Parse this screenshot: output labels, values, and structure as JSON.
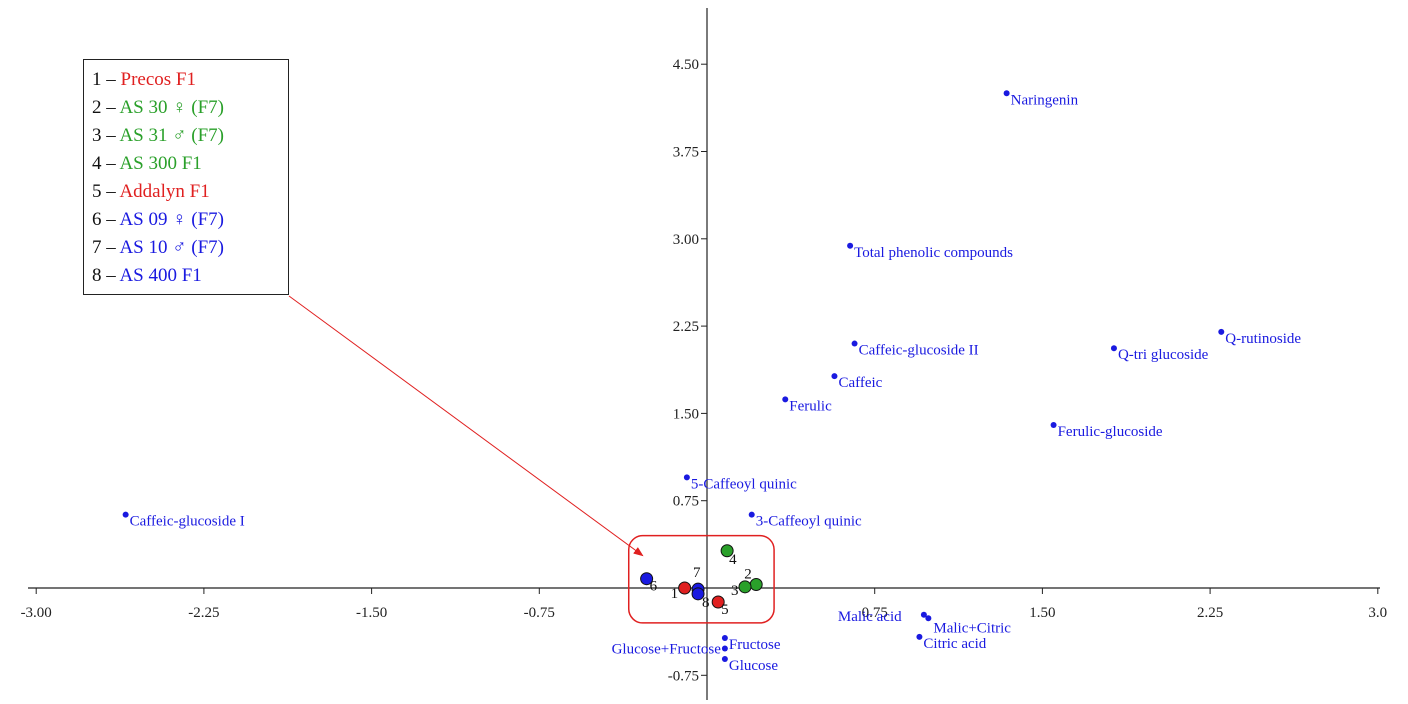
{
  "chart_data": {
    "type": "scatter",
    "title": "",
    "xlabel": "",
    "ylabel": "",
    "xlim": [
      -3.0,
      3.0
    ],
    "ylim": [
      -0.85,
      5.0
    ],
    "x_ticks": [
      {
        "value": -3.0,
        "label": "-3.00"
      },
      {
        "value": -2.25,
        "label": "-2.25"
      },
      {
        "value": -1.5,
        "label": "-1.50"
      },
      {
        "value": -0.75,
        "label": "-0.75"
      },
      {
        "value": 0.75,
        "label": "0.75"
      },
      {
        "value": 1.5,
        "label": "1.50"
      },
      {
        "value": 2.25,
        "label": "2.25"
      },
      {
        "value": 3.0,
        "label": "3.0"
      }
    ],
    "y_ticks": [
      {
        "value": -0.75,
        "label": "-0.75"
      },
      {
        "value": 0.75,
        "label": "0.75"
      },
      {
        "value": 1.5,
        "label": "1.50"
      },
      {
        "value": 2.25,
        "label": "2.25"
      },
      {
        "value": 3.0,
        "label": "3.00"
      },
      {
        "value": 3.75,
        "label": "3.75"
      },
      {
        "value": 4.5,
        "label": "4.50"
      }
    ],
    "grid": false,
    "variables": [
      {
        "name": "Naringenin",
        "x": 1.34,
        "y": 4.25
      },
      {
        "name": "Total phenolic compounds",
        "x": 0.64,
        "y": 2.94
      },
      {
        "name": "Q-rutinoside",
        "x": 2.3,
        "y": 2.2
      },
      {
        "name": "Q-tri glucoside",
        "x": 1.82,
        "y": 2.06
      },
      {
        "name": "Caffeic-glucoside II",
        "x": 0.66,
        "y": 2.1
      },
      {
        "name": "Caffeic",
        "x": 0.57,
        "y": 1.82
      },
      {
        "name": "Ferulic",
        "x": 0.35,
        "y": 1.62
      },
      {
        "name": "Ferulic-glucoside",
        "x": 1.55,
        "y": 1.4
      },
      {
        "name": "5-Caffeoyl quinic",
        "x": -0.09,
        "y": 0.95
      },
      {
        "name": "3-Caffeoyl quinic",
        "x": 0.2,
        "y": 0.63
      },
      {
        "name": "Caffeic-glucoside I",
        "x": -2.6,
        "y": 0.63
      },
      {
        "name": "Malic acid",
        "x": 0.97,
        "y": -0.23
      },
      {
        "name": "Malic+Citric",
        "x": 0.99,
        "y": -0.26
      },
      {
        "name": "Citric acid",
        "x": 0.95,
        "y": -0.42
      },
      {
        "name": "Fructose",
        "x": 0.08,
        "y": -0.43
      },
      {
        "name": "Glucose+Fructose",
        "x": 0.08,
        "y": -0.52
      },
      {
        "name": "Glucose",
        "x": 0.08,
        "y": -0.61
      }
    ],
    "samples": [
      {
        "id": "1",
        "x": -0.1,
        "y": 0.0,
        "color": "#e02020"
      },
      {
        "id": "2",
        "x": 0.22,
        "y": 0.03,
        "color": "#2aa02a"
      },
      {
        "id": "3",
        "x": 0.17,
        "y": 0.01,
        "color": "#2aa02a"
      },
      {
        "id": "4",
        "x": 0.09,
        "y": 0.32,
        "color": "#2aa02a"
      },
      {
        "id": "5",
        "x": 0.05,
        "y": -0.12,
        "color": "#e02020"
      },
      {
        "id": "6",
        "x": -0.27,
        "y": 0.08,
        "color": "#1a1ae0"
      },
      {
        "id": "7",
        "x": -0.04,
        "y": -0.01,
        "color": "#1a1ae0"
      },
      {
        "id": "8",
        "x": -0.04,
        "y": -0.05,
        "color": "#1a1ae0"
      }
    ],
    "zoom_box": {
      "x1": -0.35,
      "y1": 0.45,
      "x2": 0.3,
      "y2": -0.3
    },
    "legend_position": "top-left",
    "legend": [
      {
        "num": "1",
        "dash": " – ",
        "text": "Precos F1",
        "color": "#e02020"
      },
      {
        "num": "2",
        "dash": " – ",
        "text": "AS 30 ♀ (F7)",
        "color": "#2aa02a"
      },
      {
        "num": "3",
        "dash": " – ",
        "text": "AS 31 ♂ (F7)",
        "color": "#2aa02a"
      },
      {
        "num": "4",
        "dash": " – ",
        "text": "AS 300 F1",
        "color": "#2aa02a"
      },
      {
        "num": "5",
        "dash": " – ",
        "text": "Addalyn F1",
        "color": "#e02020"
      },
      {
        "num": "6",
        "dash": " – ",
        "text": "AS 09 ♀ (F7)",
        "color": "#1a1ae0"
      },
      {
        "num": "7",
        "dash": " – ",
        "text": "AS 10 ♂ (F7)",
        "color": "#1a1ae0"
      },
      {
        "num": "8",
        "dash": " – ",
        "text": "AS 400 F1",
        "color": "#1a1ae0"
      }
    ],
    "colors": {
      "variables": "#1a1ae0",
      "axis": "#222222",
      "zoom_box": "#e02020"
    }
  }
}
